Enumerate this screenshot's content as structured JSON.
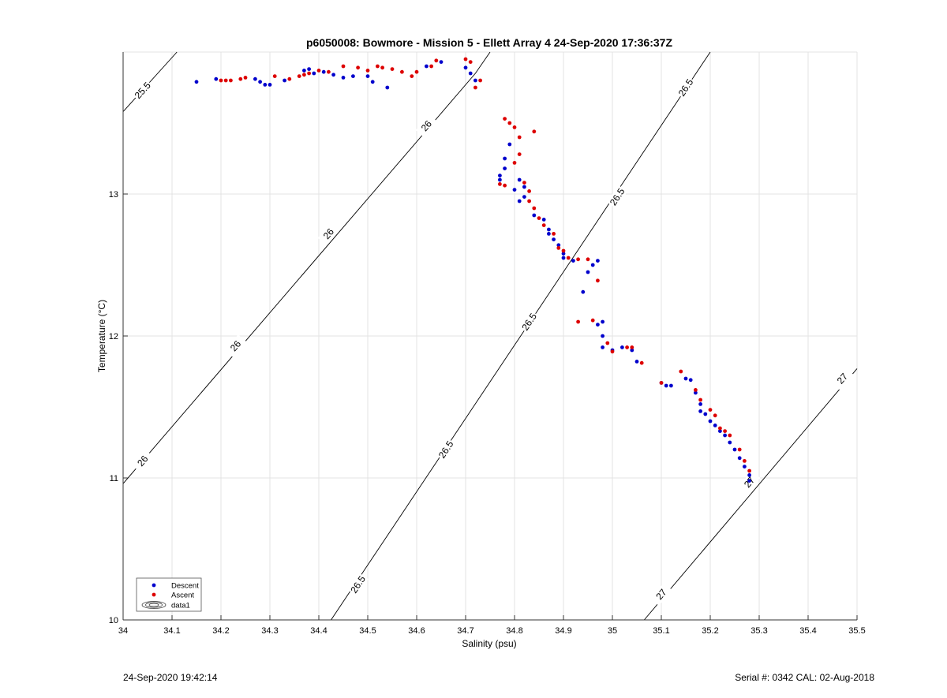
{
  "chart_data": {
    "type": "scatter",
    "title": "p6050008: Bowmore - Mission 5 - Ellett Array 4 24-Sep-2020 17:36:37Z",
    "xlabel": "Salinity (psu)",
    "ylabel": "Temperature (°C)",
    "xlim": [
      34,
      35.5
    ],
    "ylim": [
      10,
      14
    ],
    "xticks": [
      "34",
      "34.1",
      "34.2",
      "34.3",
      "34.4",
      "34.5",
      "34.6",
      "34.7",
      "34.8",
      "34.9",
      "35",
      "35.1",
      "35.2",
      "35.3",
      "35.4",
      "35.5"
    ],
    "yticks": [
      "10",
      "11",
      "12",
      "13"
    ],
    "grid": true,
    "legend_position": "bottom-left",
    "legend": [
      "Descent",
      "Ascent",
      "data1"
    ],
    "colors": {
      "descent": "#0000cc",
      "ascent": "#dd0000",
      "contour": "#000000",
      "grid": "#e3e3e3"
    },
    "series": [
      {
        "name": "Descent",
        "points": [
          [
            34.15,
            13.79
          ],
          [
            34.19,
            13.81
          ],
          [
            34.27,
            13.81
          ],
          [
            34.28,
            13.79
          ],
          [
            34.29,
            13.77
          ],
          [
            34.3,
            13.77
          ],
          [
            34.33,
            13.8
          ],
          [
            34.37,
            13.87
          ],
          [
            34.38,
            13.88
          ],
          [
            34.39,
            13.85
          ],
          [
            34.41,
            13.86
          ],
          [
            34.43,
            13.84
          ],
          [
            34.45,
            13.82
          ],
          [
            34.47,
            13.83
          ],
          [
            34.5,
            13.83
          ],
          [
            34.51,
            13.79
          ],
          [
            34.54,
            13.75
          ],
          [
            34.62,
            13.9
          ],
          [
            34.65,
            13.93
          ],
          [
            34.7,
            13.89
          ],
          [
            34.71,
            13.85
          ],
          [
            34.72,
            13.8
          ],
          [
            34.77,
            13.1
          ],
          [
            34.77,
            13.13
          ],
          [
            34.78,
            13.18
          ],
          [
            34.78,
            13.25
          ],
          [
            34.79,
            13.35
          ],
          [
            34.8,
            13.03
          ],
          [
            34.81,
            12.95
          ],
          [
            34.81,
            13.1
          ],
          [
            34.82,
            13.05
          ],
          [
            34.82,
            12.98
          ],
          [
            34.84,
            12.85
          ],
          [
            34.86,
            12.82
          ],
          [
            34.87,
            12.75
          ],
          [
            34.87,
            12.72
          ],
          [
            34.88,
            12.68
          ],
          [
            34.89,
            12.64
          ],
          [
            34.9,
            12.58
          ],
          [
            34.9,
            12.55
          ],
          [
            34.92,
            12.53
          ],
          [
            34.95,
            12.45
          ],
          [
            34.96,
            12.5
          ],
          [
            34.97,
            12.53
          ],
          [
            34.94,
            12.31
          ],
          [
            34.97,
            12.08
          ],
          [
            34.98,
            12.1
          ],
          [
            34.98,
            12.0
          ],
          [
            34.98,
            11.92
          ],
          [
            35.0,
            11.9
          ],
          [
            35.02,
            11.92
          ],
          [
            35.04,
            11.9
          ],
          [
            35.05,
            11.82
          ],
          [
            35.1,
            11.67
          ],
          [
            35.11,
            11.65
          ],
          [
            35.12,
            11.65
          ],
          [
            35.15,
            11.7
          ],
          [
            35.16,
            11.69
          ],
          [
            35.17,
            11.6
          ],
          [
            35.18,
            11.52
          ],
          [
            35.18,
            11.47
          ],
          [
            35.19,
            11.45
          ],
          [
            35.2,
            11.4
          ],
          [
            35.21,
            11.37
          ],
          [
            35.22,
            11.33
          ],
          [
            35.23,
            11.3
          ],
          [
            35.24,
            11.25
          ],
          [
            35.25,
            11.2
          ],
          [
            35.26,
            11.14
          ],
          [
            35.27,
            11.08
          ],
          [
            35.28,
            11.02
          ],
          [
            35.28,
            10.98
          ]
        ]
      },
      {
        "name": "Ascent",
        "points": [
          [
            34.2,
            13.8
          ],
          [
            34.21,
            13.8
          ],
          [
            34.22,
            13.8
          ],
          [
            34.24,
            13.81
          ],
          [
            34.25,
            13.82
          ],
          [
            34.31,
            13.83
          ],
          [
            34.34,
            13.81
          ],
          [
            34.36,
            13.83
          ],
          [
            34.37,
            13.84
          ],
          [
            34.38,
            13.85
          ],
          [
            34.4,
            13.87
          ],
          [
            34.42,
            13.86
          ],
          [
            34.45,
            13.9
          ],
          [
            34.48,
            13.89
          ],
          [
            34.5,
            13.87
          ],
          [
            34.52,
            13.9
          ],
          [
            34.53,
            13.89
          ],
          [
            34.55,
            13.88
          ],
          [
            34.57,
            13.86
          ],
          [
            34.59,
            13.83
          ],
          [
            34.6,
            13.86
          ],
          [
            34.63,
            13.9
          ],
          [
            34.64,
            13.94
          ],
          [
            34.7,
            13.95
          ],
          [
            34.71,
            13.93
          ],
          [
            34.72,
            13.75
          ],
          [
            34.73,
            13.8
          ],
          [
            34.78,
            13.53
          ],
          [
            34.79,
            13.5
          ],
          [
            34.8,
            13.47
          ],
          [
            34.8,
            13.22
          ],
          [
            34.81,
            13.4
          ],
          [
            34.81,
            13.28
          ],
          [
            34.82,
            13.08
          ],
          [
            34.83,
            13.02
          ],
          [
            34.83,
            12.95
          ],
          [
            34.84,
            13.44
          ],
          [
            34.77,
            13.07
          ],
          [
            34.78,
            13.06
          ],
          [
            34.84,
            12.9
          ],
          [
            34.85,
            12.83
          ],
          [
            34.86,
            12.78
          ],
          [
            34.88,
            12.72
          ],
          [
            34.89,
            12.62
          ],
          [
            34.9,
            12.6
          ],
          [
            34.91,
            12.55
          ],
          [
            34.93,
            12.54
          ],
          [
            34.95,
            12.54
          ],
          [
            34.97,
            12.39
          ],
          [
            34.93,
            12.1
          ],
          [
            34.96,
            12.11
          ],
          [
            34.99,
            11.95
          ],
          [
            35.0,
            11.89
          ],
          [
            35.03,
            11.92
          ],
          [
            35.04,
            11.92
          ],
          [
            35.06,
            11.81
          ],
          [
            35.1,
            11.67
          ],
          [
            35.14,
            11.75
          ],
          [
            35.17,
            11.62
          ],
          [
            35.18,
            11.55
          ],
          [
            35.2,
            11.48
          ],
          [
            35.21,
            11.44
          ],
          [
            35.22,
            11.35
          ],
          [
            35.23,
            11.33
          ],
          [
            35.24,
            11.3
          ],
          [
            35.26,
            11.2
          ],
          [
            35.27,
            11.12
          ],
          [
            35.28,
            11.05
          ]
        ]
      }
    ],
    "contours": [
      {
        "level": "25.5",
        "line": [
          [
            34.0,
            13.58
          ],
          [
            34.11,
            14.0
          ]
        ],
        "labels": [
          [
            34.04,
            13.73,
            "25.5"
          ]
        ]
      },
      {
        "level": "26",
        "line": [
          [
            34.0,
            10.96
          ],
          [
            34.72,
            13.85
          ],
          [
            34.75,
            14.0
          ]
        ],
        "labels": [
          [
            34.04,
            11.12,
            "26"
          ],
          [
            34.23,
            11.93,
            "26"
          ],
          [
            34.42,
            12.72,
            "26"
          ],
          [
            34.62,
            13.48,
            "26"
          ]
        ]
      },
      {
        "level": "26.5",
        "line": [
          [
            34.425,
            10.0
          ],
          [
            35.2,
            14.0
          ]
        ],
        "labels": [
          [
            34.48,
            10.25,
            "26.5"
          ],
          [
            34.66,
            11.2,
            "26.5"
          ],
          [
            34.83,
            12.1,
            "26.5"
          ],
          [
            35.01,
            12.98,
            "26.5"
          ],
          [
            35.15,
            13.75,
            "26.5"
          ]
        ]
      },
      {
        "level": "27",
        "line": [
          [
            35.065,
            10.0
          ],
          [
            35.5,
            11.77
          ]
        ],
        "labels": [
          [
            35.1,
            10.18,
            "27"
          ],
          [
            35.28,
            10.97,
            "27"
          ],
          [
            35.47,
            11.7,
            "27"
          ]
        ]
      }
    ]
  },
  "footer": {
    "timestamp": "24-Sep-2020 19:42:14",
    "serial_cal": "Serial #: 0342  CAL: 02-Aug-2018"
  }
}
